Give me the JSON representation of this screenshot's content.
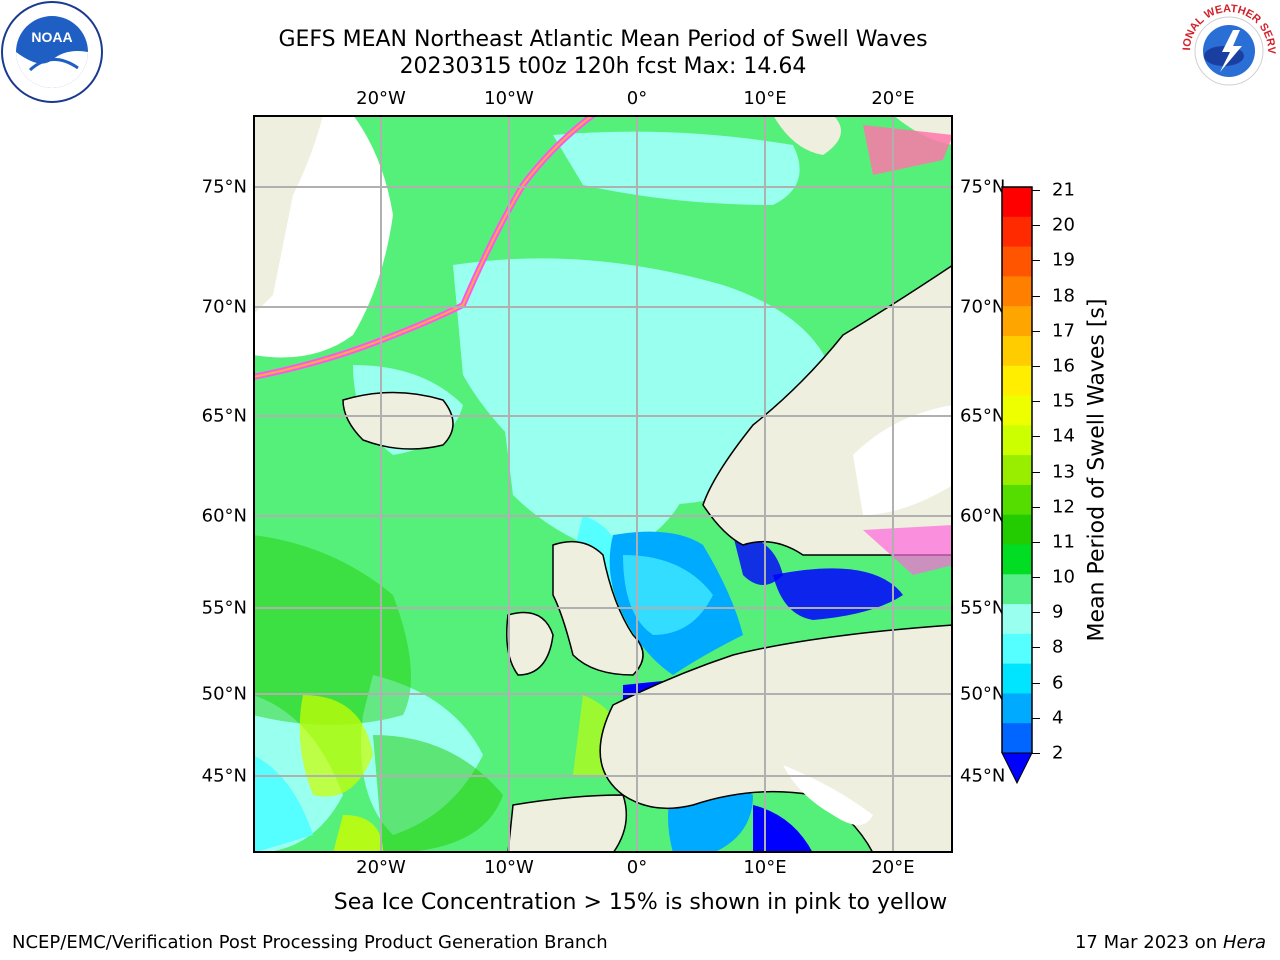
{
  "title": {
    "line1": "GEFS MEAN Northeast Atlantic Mean Period of Swell Waves",
    "line2": "20230315 t00z 120h fcst   Max: 14.64"
  },
  "axes": {
    "lon_ticks": [
      "20°W",
      "10°W",
      "0°",
      "10°E",
      "20°E"
    ],
    "lat_ticks": [
      "75°N",
      "70°N",
      "65°N",
      "60°N",
      "55°N",
      "50°N",
      "45°N"
    ]
  },
  "colorbar": {
    "title": "Mean Period of Swell Waves [s]",
    "labels": [
      "21",
      "20",
      "19",
      "18",
      "17",
      "16",
      "15",
      "14",
      "13",
      "12",
      "11",
      "10",
      "9",
      "8",
      "6",
      "4",
      "2"
    ],
    "colors": [
      "#ff0000",
      "#ff2a00",
      "#ff5500",
      "#ff7f00",
      "#ffa500",
      "#ffcc00",
      "#ffee00",
      "#eeff00",
      "#ccff00",
      "#99ee00",
      "#55dd00",
      "#22cc00",
      "#00dd22",
      "#55ee88",
      "#99ffee",
      "#55ffff",
      "#00e5ff",
      "#00aaff",
      "#0066ff"
    ]
  },
  "note": "Sea Ice Concentration > 15% is shown in pink to yellow",
  "footer": {
    "left": "NCEP/EMC/Verification Post Processing Product Generation Branch",
    "right_date": "17 Mar 2023 on ",
    "right_host": "Hera"
  },
  "logos": {
    "noaa": "NOAA",
    "nws": "NATIONAL WEATHER SERVICE"
  }
}
